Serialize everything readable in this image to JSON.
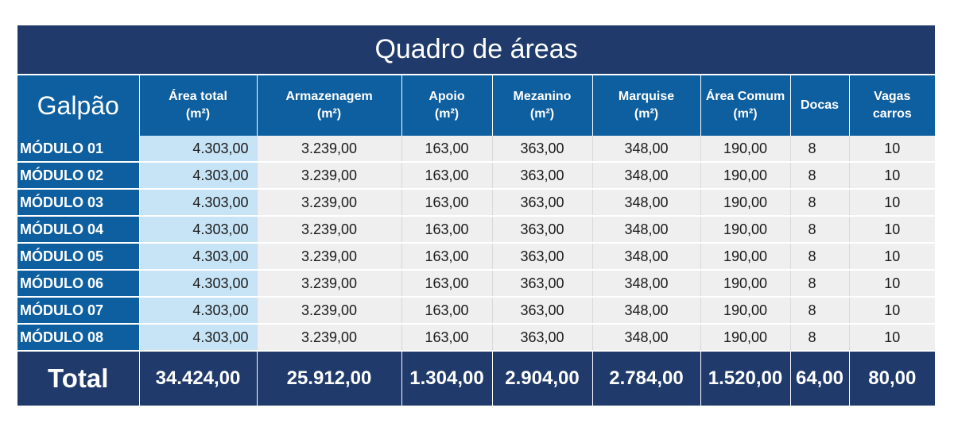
{
  "title": "Quadro de áreas",
  "headers": {
    "galpao": "Galpão",
    "area_total": [
      "Área total",
      "(m²)"
    ],
    "armazenagem": [
      "Armazenagem",
      "(m²)"
    ],
    "apoio": [
      "Apoio",
      "(m²)"
    ],
    "mezanino": [
      "Mezanino",
      "(m²)"
    ],
    "marquise": [
      "Marquise",
      "(m²)"
    ],
    "area_comum": [
      "Área Comum",
      "(m²)"
    ],
    "docas": "Docas",
    "vagas": [
      "Vagas",
      "carros"
    ]
  },
  "rows": [
    {
      "modulo": "MÓDULO 01",
      "area_total": "4.303,00",
      "armazenagem": "3.239,00",
      "apoio": "163,00",
      "mezanino": "363,00",
      "marquise": "348,00",
      "area_comum": "190,00",
      "docas": "8",
      "vagas": "10"
    },
    {
      "modulo": "MÓDULO 02",
      "area_total": "4.303,00",
      "armazenagem": "3.239,00",
      "apoio": "163,00",
      "mezanino": "363,00",
      "marquise": "348,00",
      "area_comum": "190,00",
      "docas": "8",
      "vagas": "10"
    },
    {
      "modulo": "MÓDULO 03",
      "area_total": "4.303,00",
      "armazenagem": "3.239,00",
      "apoio": "163,00",
      "mezanino": "363,00",
      "marquise": "348,00",
      "area_comum": "190,00",
      "docas": "8",
      "vagas": "10"
    },
    {
      "modulo": "MÓDULO 04",
      "area_total": "4.303,00",
      "armazenagem": "3.239,00",
      "apoio": "163,00",
      "mezanino": "363,00",
      "marquise": "348,00",
      "area_comum": "190,00",
      "docas": "8",
      "vagas": "10"
    },
    {
      "modulo": "MÓDULO 05",
      "area_total": "4.303,00",
      "armazenagem": "3.239,00",
      "apoio": "163,00",
      "mezanino": "363,00",
      "marquise": "348,00",
      "area_comum": "190,00",
      "docas": "8",
      "vagas": "10"
    },
    {
      "modulo": "MÓDULO 06",
      "area_total": "4.303,00",
      "armazenagem": "3.239,00",
      "apoio": "163,00",
      "mezanino": "363,00",
      "marquise": "348,00",
      "area_comum": "190,00",
      "docas": "8",
      "vagas": "10"
    },
    {
      "modulo": "MÓDULO 07",
      "area_total": "4.303,00",
      "armazenagem": "3.239,00",
      "apoio": "163,00",
      "mezanino": "363,00",
      "marquise": "348,00",
      "area_comum": "190,00",
      "docas": "8",
      "vagas": "10"
    },
    {
      "modulo": "MÓDULO 08",
      "area_total": "4.303,00",
      "armazenagem": "3.239,00",
      "apoio": "163,00",
      "mezanino": "363,00",
      "marquise": "348,00",
      "area_comum": "190,00",
      "docas": "8",
      "vagas": "10"
    }
  ],
  "total": {
    "label": "Total",
    "area_total": "34.424,00",
    "armazenagem": "25.912,00",
    "apoio": "1.304,00",
    "mezanino": "2.904,00",
    "marquise": "2.784,00",
    "area_comum": "1.520,00",
    "docas": "64,00",
    "vagas": "80,00"
  },
  "colors": {
    "title_bg": "#1f3a6b",
    "header_bg": "#0e5f9f",
    "area_col_bg": "#c7e4f7",
    "row_bg": "#efefef"
  }
}
